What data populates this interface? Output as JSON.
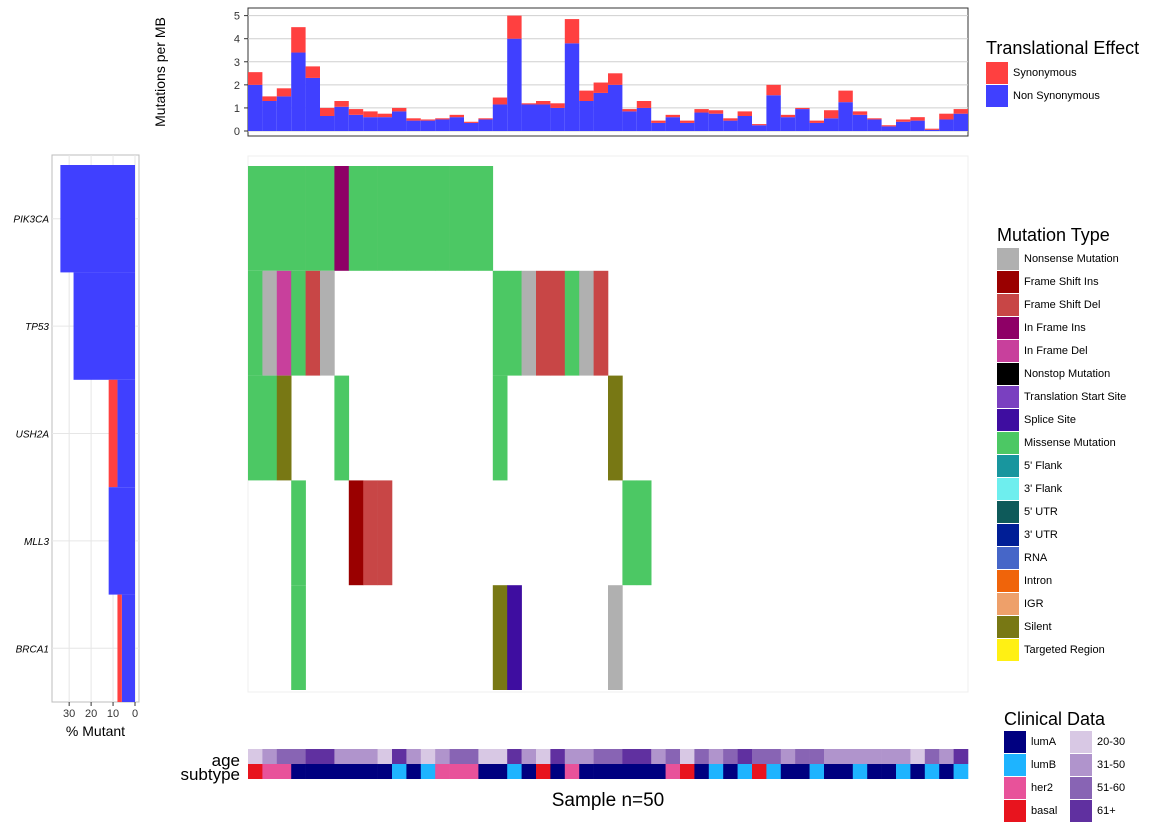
{
  "chart_data": [
    {
      "type": "bar",
      "stacked": true,
      "ylabel": "Mutations per MB",
      "ylim": [
        0,
        5.2
      ],
      "yticks": [
        0,
        1,
        2,
        3,
        4,
        5
      ],
      "grid": true,
      "legend_title": "Translational Effect",
      "legend_position": "right",
      "series": [
        {
          "name": "Synonymous",
          "color": "#FF4040"
        },
        {
          "name": "Non Synonymous",
          "color": "#4040FF"
        }
      ],
      "samples": [
        {
          "ns": 2.0,
          "s": 0.55
        },
        {
          "ns": 1.3,
          "s": 0.2
        },
        {
          "ns": 1.5,
          "s": 0.35
        },
        {
          "ns": 3.4,
          "s": 1.1
        },
        {
          "ns": 2.3,
          "s": 0.5
        },
        {
          "ns": 0.65,
          "s": 0.35
        },
        {
          "ns": 1.05,
          "s": 0.25
        },
        {
          "ns": 0.7,
          "s": 0.25
        },
        {
          "ns": 0.6,
          "s": 0.25
        },
        {
          "ns": 0.6,
          "s": 0.15
        },
        {
          "ns": 0.85,
          "s": 0.15
        },
        {
          "ns": 0.45,
          "s": 0.1
        },
        {
          "ns": 0.45,
          "s": 0.05
        },
        {
          "ns": 0.5,
          "s": 0.05
        },
        {
          "ns": 0.6,
          "s": 0.1
        },
        {
          "ns": 0.35,
          "s": 0.05
        },
        {
          "ns": 0.5,
          "s": 0.05
        },
        {
          "ns": 1.15,
          "s": 0.3
        },
        {
          "ns": 4.0,
          "s": 1.0
        },
        {
          "ns": 1.15,
          "s": 0.05
        },
        {
          "ns": 1.15,
          "s": 0.15
        },
        {
          "ns": 1.0,
          "s": 0.2
        },
        {
          "ns": 3.8,
          "s": 1.05
        },
        {
          "ns": 1.3,
          "s": 0.45
        },
        {
          "ns": 1.65,
          "s": 0.45
        },
        {
          "ns": 2.0,
          "s": 0.5
        },
        {
          "ns": 0.85,
          "s": 0.1
        },
        {
          "ns": 1.0,
          "s": 0.3
        },
        {
          "ns": 0.35,
          "s": 0.1
        },
        {
          "ns": 0.6,
          "s": 0.1
        },
        {
          "ns": 0.35,
          "s": 0.1
        },
        {
          "ns": 0.8,
          "s": 0.15
        },
        {
          "ns": 0.75,
          "s": 0.15
        },
        {
          "ns": 0.45,
          "s": 0.1
        },
        {
          "ns": 0.65,
          "s": 0.2
        },
        {
          "ns": 0.25,
          "s": 0.05
        },
        {
          "ns": 1.55,
          "s": 0.45
        },
        {
          "ns": 0.6,
          "s": 0.1
        },
        {
          "ns": 0.95,
          "s": 0.05
        },
        {
          "ns": 0.35,
          "s": 0.1
        },
        {
          "ns": 0.55,
          "s": 0.35
        },
        {
          "ns": 1.25,
          "s": 0.5
        },
        {
          "ns": 0.7,
          "s": 0.15
        },
        {
          "ns": 0.5,
          "s": 0.05
        },
        {
          "ns": 0.2,
          "s": 0.05
        },
        {
          "ns": 0.4,
          "s": 0.1
        },
        {
          "ns": 0.45,
          "s": 0.15
        },
        {
          "ns": 0.05,
          "s": 0.05
        },
        {
          "ns": 0.5,
          "s": 0.25
        },
        {
          "ns": 0.75,
          "s": 0.2
        }
      ]
    },
    {
      "type": "bar",
      "orientation": "horizontal",
      "xlabel": "% Mutant",
      "xlim": [
        0,
        36
      ],
      "xticks": [
        30,
        20,
        10,
        0
      ],
      "x_reversed": true,
      "grid": true,
      "genes": [
        "PIK3CA",
        "TP53",
        "USH2A",
        "MLL3",
        "BRCA1"
      ],
      "series": [
        {
          "name": "Non Synonymous",
          "color": "#4040FF",
          "values": [
            34,
            28,
            8,
            12,
            6
          ]
        },
        {
          "name": "Synonymous",
          "color": "#FF4040",
          "values": [
            0,
            0,
            4,
            0,
            2
          ]
        }
      ]
    },
    {
      "type": "heatmap",
      "xlabel": "Sample n=50",
      "legend_title": "Mutation Type",
      "legend_position": "right",
      "rows": [
        "PIK3CA",
        "TP53",
        "USH2A",
        "MLL3",
        "BRCA1"
      ],
      "types": [
        {
          "name": "Nonsense Mutation",
          "color": "#B0B0B0"
        },
        {
          "name": "Frame Shift Ins",
          "color": "#9A0000"
        },
        {
          "name": "Frame Shift Del",
          "color": "#C84646"
        },
        {
          "name": "In Frame Ins",
          "color": "#8E0066"
        },
        {
          "name": "In Frame Del",
          "color": "#C8409C"
        },
        {
          "name": "Nonstop Mutation",
          "color": "#000000"
        },
        {
          "name": "Translation Start Site",
          "color": "#7A40C0"
        },
        {
          "name": "Splice Site",
          "color": "#3E0DA0"
        },
        {
          "name": "Missense Mutation",
          "color": "#4CC864"
        },
        {
          "name": "5' Flank",
          "color": "#18969E"
        },
        {
          "name": "3' Flank",
          "color": "#6EEEEE"
        },
        {
          "name": "5' UTR",
          "color": "#0E5A5A"
        },
        {
          "name": "3' UTR",
          "color": "#001E96"
        },
        {
          "name": "RNA",
          "color": "#4666C8"
        },
        {
          "name": "Intron",
          "color": "#F0640A"
        },
        {
          "name": "IGR",
          "color": "#EEA06A"
        },
        {
          "name": "Silent",
          "color": "#787814"
        },
        {
          "name": "Targeted Region",
          "color": "#FFF014"
        }
      ],
      "cells": [
        {
          "row": 0,
          "col": 0,
          "type": 8
        },
        {
          "row": 0,
          "col": 1,
          "type": 8
        },
        {
          "row": 0,
          "col": 2,
          "type": 8
        },
        {
          "row": 0,
          "col": 3,
          "type": 8
        },
        {
          "row": 0,
          "col": 4,
          "type": 8
        },
        {
          "row": 0,
          "col": 5,
          "type": 8
        },
        {
          "row": 0,
          "col": 6,
          "type": 3
        },
        {
          "row": 0,
          "col": 7,
          "type": 8
        },
        {
          "row": 0,
          "col": 8,
          "type": 8
        },
        {
          "row": 0,
          "col": 9,
          "type": 8
        },
        {
          "row": 0,
          "col": 10,
          "type": 8
        },
        {
          "row": 0,
          "col": 11,
          "type": 8
        },
        {
          "row": 0,
          "col": 12,
          "type": 8
        },
        {
          "row": 0,
          "col": 13,
          "type": 8
        },
        {
          "row": 0,
          "col": 14,
          "type": 8
        },
        {
          "row": 0,
          "col": 15,
          "type": 8
        },
        {
          "row": 0,
          "col": 16,
          "type": 8
        },
        {
          "row": 1,
          "col": 0,
          "type": 8
        },
        {
          "row": 1,
          "col": 1,
          "type": 0
        },
        {
          "row": 1,
          "col": 2,
          "type": 4
        },
        {
          "row": 1,
          "col": 3,
          "type": 8
        },
        {
          "row": 1,
          "col": 4,
          "type": 2
        },
        {
          "row": 1,
          "col": 5,
          "type": 0
        },
        {
          "row": 1,
          "col": 17,
          "type": 8
        },
        {
          "row": 1,
          "col": 18,
          "type": 8
        },
        {
          "row": 1,
          "col": 19,
          "type": 0
        },
        {
          "row": 1,
          "col": 20,
          "type": 2
        },
        {
          "row": 1,
          "col": 21,
          "type": 2
        },
        {
          "row": 1,
          "col": 22,
          "type": 8
        },
        {
          "row": 1,
          "col": 23,
          "type": 0
        },
        {
          "row": 1,
          "col": 24,
          "type": 2
        },
        {
          "row": 2,
          "col": 0,
          "type": 8
        },
        {
          "row": 2,
          "col": 1,
          "type": 8
        },
        {
          "row": 2,
          "col": 2,
          "type": 16
        },
        {
          "row": 2,
          "col": 6,
          "type": 8
        },
        {
          "row": 2,
          "col": 17,
          "type": 8
        },
        {
          "row": 2,
          "col": 25,
          "type": 16
        },
        {
          "row": 3,
          "col": 3,
          "type": 8
        },
        {
          "row": 3,
          "col": 7,
          "type": 1
        },
        {
          "row": 3,
          "col": 8,
          "type": 2
        },
        {
          "row": 3,
          "col": 9,
          "type": 2
        },
        {
          "row": 3,
          "col": 26,
          "type": 8
        },
        {
          "row": 3,
          "col": 27,
          "type": 8
        },
        {
          "row": 4,
          "col": 3,
          "type": 8
        },
        {
          "row": 4,
          "col": 17,
          "type": 16
        },
        {
          "row": 4,
          "col": 18,
          "type": 7
        },
        {
          "row": 4,
          "col": 25,
          "type": 0
        }
      ],
      "clinical_legend_title": "Clinical Data",
      "clinical_tracks": [
        "age",
        "subtype"
      ],
      "subtype_legend": [
        {
          "name": "lumA",
          "color": "#000080"
        },
        {
          "name": "lumB",
          "color": "#1EB4FF"
        },
        {
          "name": "her2",
          "color": "#E8529A"
        },
        {
          "name": "basal",
          "color": "#E8141E"
        }
      ],
      "age_legend": [
        {
          "name": "20-30",
          "color": "#D8C8E4"
        },
        {
          "name": "31-50",
          "color": "#B094CC"
        },
        {
          "name": "51-60",
          "color": "#8864B4"
        },
        {
          "name": "61+",
          "color": "#6030A0"
        }
      ],
      "age": [
        0,
        1,
        2,
        2,
        3,
        3,
        1,
        1,
        1,
        0,
        3,
        1,
        0,
        1,
        2,
        2,
        0,
        0,
        3,
        1,
        0,
        3,
        1,
        1,
        2,
        2,
        3,
        3,
        1,
        2,
        0,
        2,
        1,
        2,
        3,
        2,
        2,
        1,
        2,
        2,
        1,
        1,
        1,
        1,
        1,
        1,
        0,
        2,
        1,
        3
      ],
      "subtype": [
        3,
        2,
        2,
        0,
        0,
        0,
        0,
        0,
        0,
        0,
        1,
        0,
        1,
        2,
        2,
        2,
        0,
        0,
        1,
        0,
        3,
        0,
        2,
        0,
        0,
        0,
        0,
        0,
        0,
        2,
        3,
        0,
        1,
        0,
        1,
        3,
        1,
        0,
        0,
        1,
        0,
        0,
        1,
        0,
        0,
        1,
        0,
        1,
        0,
        1
      ]
    }
  ]
}
